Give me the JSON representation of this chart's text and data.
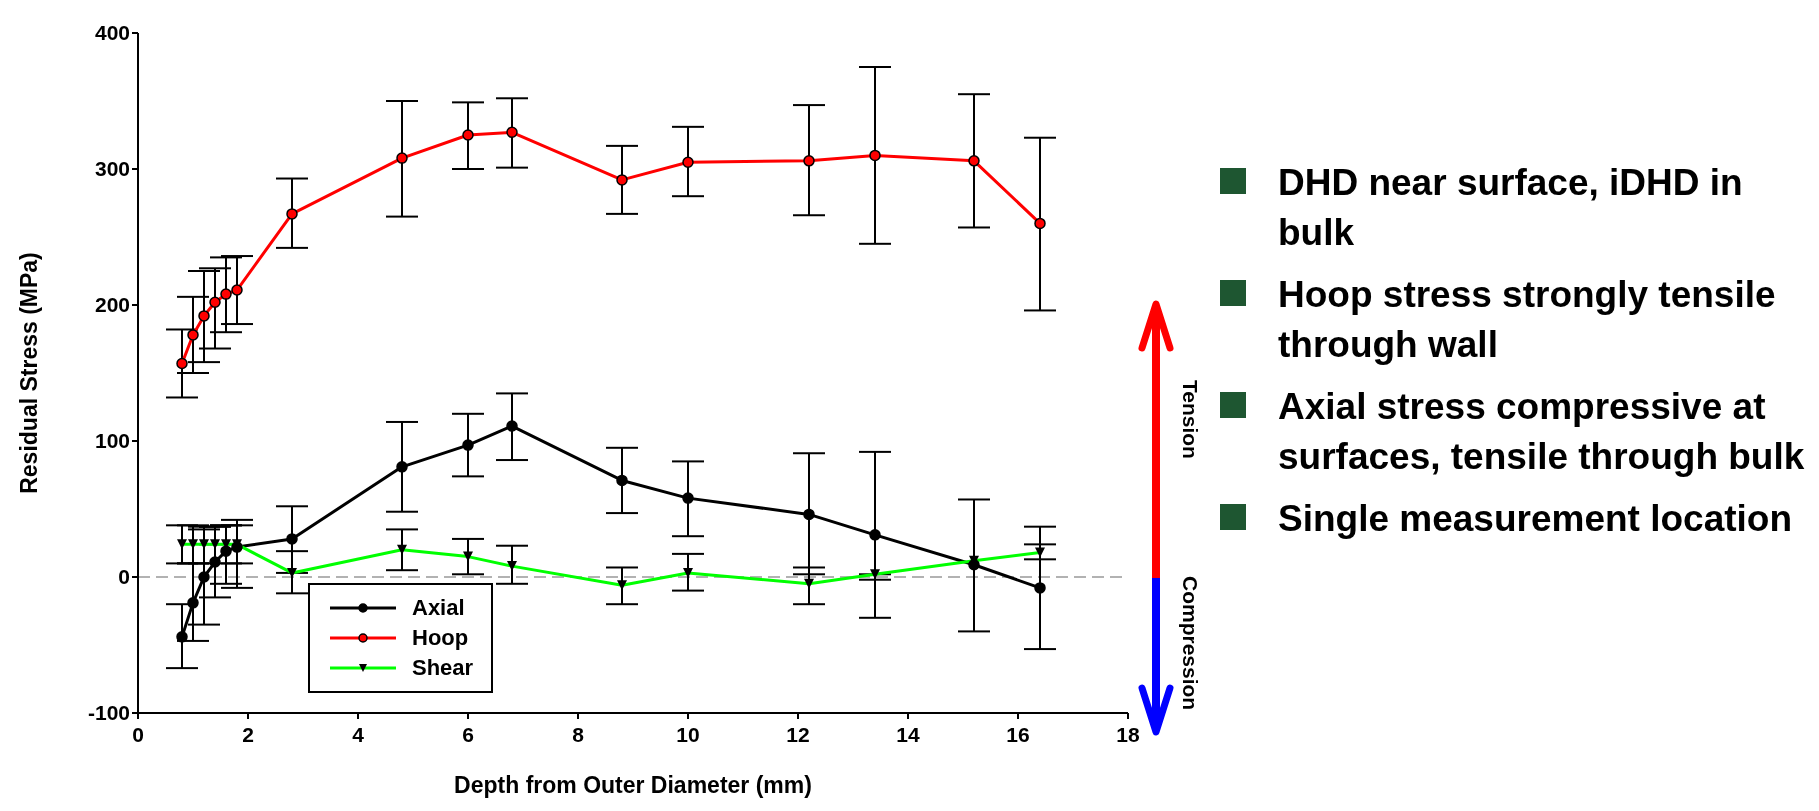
{
  "chart_data": {
    "type": "line",
    "xlabel": "Depth from Outer Diameter (mm)",
    "ylabel": "Residual Stress (MPa)",
    "xlim": [
      0,
      18
    ],
    "xticks": [
      0,
      2,
      4,
      6,
      8,
      10,
      12,
      14,
      16,
      18
    ],
    "ylim": [
      -100,
      400
    ],
    "yticks": [
      -100,
      0,
      100,
      200,
      300,
      400
    ],
    "grid": false,
    "legend": "bottom left",
    "line_style": "solid",
    "ref_lines": [
      {
        "axis": "y",
        "value": 0,
        "color": "#999999",
        "line_style": "dashed"
      }
    ],
    "annotations": [
      "Tension",
      "Compression",
      "DHD near surface, iDHD in bulk",
      "Hoop stress strongly tensile through wall",
      "Axial stress compressive at surfaces, tensile through bulk",
      "Single measurement location"
    ],
    "series": [
      {
        "name": "Axial",
        "color": "#000000",
        "marker": "circle",
        "x": [
          0.8,
          1.0,
          1.2,
          1.4,
          1.6,
          1.8,
          2.8,
          4.8,
          6.0,
          6.8,
          8.8,
          10,
          12.2,
          13.4,
          15.2,
          16.4
        ],
        "values": [
          -44,
          -19,
          0,
          11,
          19,
          22,
          28,
          81,
          97,
          111,
          71,
          58,
          46,
          31,
          9,
          -8
        ],
        "errors": [
          [
            -67,
            -20
          ],
          [
            -47,
            10
          ],
          [
            -35,
            35
          ],
          [
            -15,
            37
          ],
          [
            -5,
            38
          ],
          [
            -8,
            42
          ],
          [
            3,
            52
          ],
          [
            48,
            114
          ],
          [
            74,
            120
          ],
          [
            86,
            135
          ],
          [
            47,
            95
          ],
          [
            30,
            85
          ],
          [
            2,
            91
          ],
          [
            -30,
            92
          ],
          [
            -40,
            57
          ],
          [
            -53,
            37
          ]
        ]
      },
      {
        "name": "Hoop",
        "color": "#ff0000",
        "marker": "circle",
        "x": [
          0.8,
          1.0,
          1.2,
          1.4,
          1.6,
          1.8,
          2.8,
          4.8,
          6.0,
          6.8,
          8.8,
          10,
          12.2,
          13.4,
          15.2,
          16.4
        ],
        "values": [
          157,
          178,
          192,
          202,
          208,
          211,
          267,
          308,
          325,
          327,
          292,
          305,
          306,
          310,
          306,
          260
        ],
        "errors": [
          [
            132,
            182
          ],
          [
            150,
            206
          ],
          [
            158,
            225
          ],
          [
            168,
            227
          ],
          [
            180,
            235
          ],
          [
            186,
            236
          ],
          [
            242,
            293
          ],
          [
            265,
            350
          ],
          [
            300,
            349
          ],
          [
            301,
            352
          ],
          [
            267,
            317
          ],
          [
            280,
            331
          ],
          [
            266,
            347
          ],
          [
            245,
            375
          ],
          [
            257,
            355
          ],
          [
            196,
            323
          ]
        ]
      },
      {
        "name": "Shear",
        "color": "#00ff00",
        "marker": "triangle",
        "x": [
          0.8,
          1.0,
          1.2,
          1.4,
          1.6,
          1.8,
          2.8,
          4.8,
          6.0,
          6.8,
          8.8,
          10,
          12.2,
          13.4,
          15.2,
          16.4
        ],
        "values": [
          24,
          24,
          24,
          24,
          24,
          24,
          3,
          20,
          15,
          8,
          -6,
          3,
          -5,
          2,
          12,
          18
        ],
        "errors": [
          [
            10,
            38
          ],
          [
            10,
            38
          ],
          [
            10,
            37
          ],
          [
            24,
            37
          ],
          [
            10,
            38
          ],
          [
            10,
            38
          ],
          [
            -12,
            19
          ],
          [
            5,
            35
          ],
          [
            2,
            28
          ],
          [
            -5,
            23
          ],
          [
            -20,
            7
          ],
          [
            -10,
            17
          ],
          [
            -20,
            7
          ],
          [
            -2,
            2
          ],
          null,
          [
            13,
            24
          ]
        ]
      }
    ]
  }
}
